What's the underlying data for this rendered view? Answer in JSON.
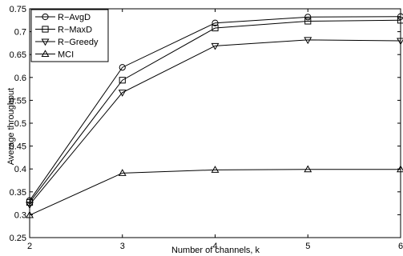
{
  "chart_data": {
    "type": "line",
    "title": "",
    "xlabel": "Number of channels, k",
    "ylabel": "Average throughput",
    "x": [
      2,
      3,
      4,
      5,
      6
    ],
    "xlim": [
      2,
      6
    ],
    "ylim": [
      0.25,
      0.75
    ],
    "xticks": [
      2,
      3,
      4,
      5,
      6
    ],
    "xtick_labels": [
      "2",
      "3",
      "4",
      "5",
      "6"
    ],
    "yticks": [
      0.25,
      0.3,
      0.35,
      0.4,
      0.45,
      0.5,
      0.55,
      0.6,
      0.65,
      0.7,
      0.75
    ],
    "ytick_labels": [
      "0.25",
      "0.3",
      "0.35",
      "0.4",
      "0.45",
      "0.5",
      "0.55",
      "0.6",
      "0.65",
      "0.7",
      "0.75"
    ],
    "grid": false,
    "legend_position": "top-left",
    "series": [
      {
        "name": "R−AvgD",
        "marker": "circle",
        "values": [
          0.331,
          0.622,
          0.719,
          0.732,
          0.733
        ]
      },
      {
        "name": "R−MaxD",
        "marker": "square",
        "values": [
          0.327,
          0.594,
          0.708,
          0.723,
          0.725
        ]
      },
      {
        "name": "R−Greedy",
        "marker": "triangle-down",
        "values": [
          0.322,
          0.567,
          0.669,
          0.682,
          0.68
        ]
      },
      {
        "name": "MCI",
        "marker": "triangle-up",
        "values": [
          0.299,
          0.391,
          0.398,
          0.399,
          0.399
        ]
      }
    ]
  }
}
